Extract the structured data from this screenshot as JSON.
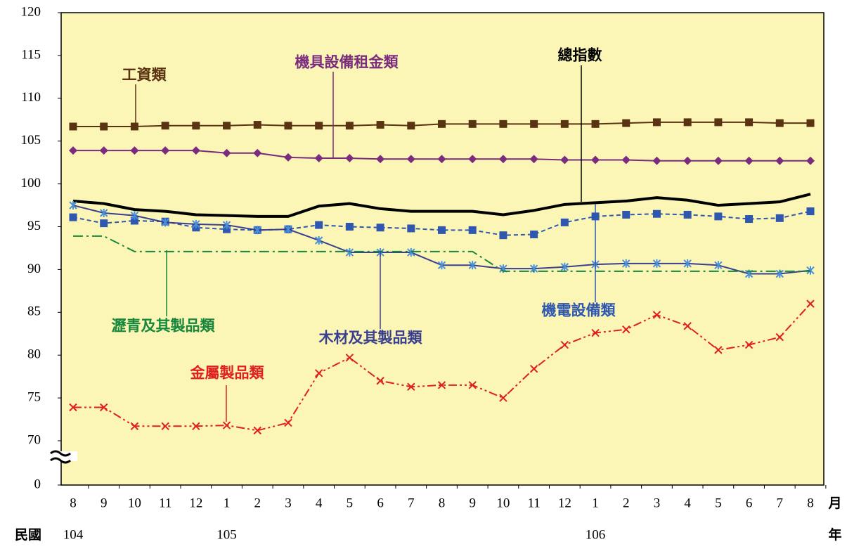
{
  "chart_data": {
    "type": "line",
    "categories": [
      "8",
      "9",
      "10",
      "11",
      "12",
      "1",
      "2",
      "3",
      "4",
      "5",
      "6",
      "7",
      "8",
      "9",
      "10",
      "11",
      "12",
      "1",
      "2",
      "3",
      "4",
      "5",
      "6",
      "7",
      "8"
    ],
    "year_labels": [
      "104",
      null,
      null,
      null,
      null,
      "105",
      null,
      null,
      null,
      null,
      null,
      null,
      null,
      null,
      null,
      null,
      null,
      "106",
      null,
      null,
      null,
      null,
      null,
      null,
      null
    ],
    "era_label": "民國",
    "x_unit": "月",
    "year_unit": "年",
    "ylim": [
      0,
      120
    ],
    "yticks": [
      0,
      70,
      75,
      80,
      85,
      90,
      95,
      100,
      105,
      110,
      115,
      120
    ],
    "y_break": true,
    "background": "#fbf6b6",
    "series": [
      {
        "name": "工資類",
        "color": "#5a3312",
        "marker": "square",
        "dash": "solid",
        "values": [
          106.7,
          106.7,
          106.7,
          106.8,
          106.8,
          106.8,
          106.9,
          106.8,
          106.8,
          106.8,
          106.9,
          106.8,
          107,
          107,
          107,
          107,
          107,
          107,
          107.1,
          107.2,
          107.2,
          107.2,
          107.2,
          107.1,
          107.1
        ]
      },
      {
        "name": "機具設備租金類",
        "color": "#7b2c7e",
        "marker": "diamond",
        "dash": "solid",
        "values": [
          103.9,
          103.9,
          103.9,
          103.9,
          103.9,
          103.6,
          103.6,
          103.1,
          103,
          103,
          102.9,
          102.9,
          102.9,
          102.9,
          102.9,
          102.9,
          102.8,
          102.8,
          102.8,
          102.7,
          102.7,
          102.7,
          102.7,
          102.7,
          102.7
        ]
      },
      {
        "name": "總指數",
        "color": "#000000",
        "marker": "none",
        "dash": "bold",
        "values": [
          98.0,
          97.7,
          97.0,
          96.8,
          96.4,
          96.3,
          96.2,
          96.2,
          97.4,
          97.7,
          97.1,
          96.8,
          96.8,
          96.8,
          96.4,
          96.9,
          97.6,
          97.8,
          98.0,
          98.4,
          98.1,
          97.5,
          97.7,
          97.9,
          98.8
        ]
      },
      {
        "name": "機電設備類",
        "color": "#2f57b0",
        "marker": "square",
        "dash": "dashed",
        "values": [
          96.1,
          95.4,
          95.7,
          95.6,
          94.9,
          94.7,
          94.6,
          94.7,
          95.2,
          95.0,
          94.9,
          94.8,
          94.6,
          94.6,
          94.0,
          94.1,
          95.5,
          96.2,
          96.4,
          96.5,
          96.4,
          96.2,
          95.9,
          96.0,
          96.8
        ]
      },
      {
        "name": "木材及其製品類",
        "color": "#3b3f8f",
        "marker": "star",
        "dash": "solid",
        "values": [
          97.5,
          96.6,
          96.3,
          95.5,
          95.3,
          95.2,
          94.6,
          94.7,
          93.4,
          92.0,
          92.0,
          92.0,
          90.5,
          90.5,
          90.1,
          90.1,
          90.3,
          90.6,
          90.7,
          90.7,
          90.7,
          90.5,
          89.5,
          89.5,
          89.9
        ]
      },
      {
        "name": "瀝青及其製品類",
        "color": "#16873c",
        "marker": "none",
        "dash": "dashdot",
        "values": [
          93.9,
          93.9,
          92.1,
          92.1,
          92.1,
          92.1,
          92.1,
          92.1,
          92.1,
          92.1,
          92.1,
          92.1,
          92.1,
          92.1,
          89.8,
          89.8,
          89.8,
          89.8,
          89.8,
          89.8,
          89.8,
          89.8,
          89.8,
          89.8,
          89.8
        ]
      },
      {
        "name": "金屬製品類",
        "color": "#e02020",
        "marker": "x",
        "dash": "dashdotdot",
        "values": [
          73.9,
          73.9,
          71.7,
          71.7,
          71.7,
          71.8,
          71.2,
          72.1,
          77.9,
          79.7,
          77.0,
          76.3,
          76.5,
          76.5,
          75.0,
          78.4,
          81.2,
          82.6,
          83.0,
          84.7,
          83.4,
          80.6,
          81.2,
          82.1,
          86.0
        ]
      }
    ]
  }
}
